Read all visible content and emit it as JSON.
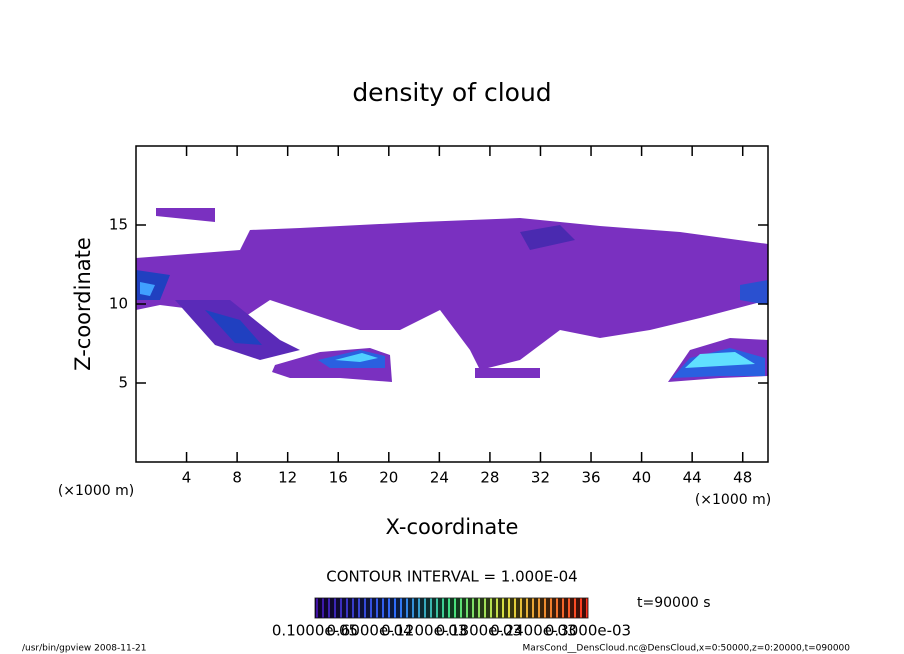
{
  "chart_data": {
    "type": "contour",
    "title": "density of cloud",
    "xlabel": "X-coordinate",
    "ylabel": "Z-coordinate",
    "x_unit": "(×1000 m)",
    "y_unit": "(×1000 m)",
    "xlim": [
      0,
      50
    ],
    "ylim": [
      0,
      20
    ],
    "xticks": [
      4,
      8,
      12,
      16,
      20,
      24,
      28,
      32,
      36,
      40,
      44,
      48
    ],
    "yticks": [
      5,
      10,
      15
    ],
    "contour_interval": "CONTOUR INTERVAL = 1.000E-04",
    "time_label": "t=90000 s",
    "colorbar_labels": [
      "0.1000e-05",
      "0.6000e-04",
      "0.1200e-03",
      "0.1800e-03",
      "0.2400e-03",
      "0.3000e-03"
    ],
    "footer_left": "/usr/bin/gpview   2008-11-21",
    "footer_right": "MarsCond__DensCloud.nc@DensCloud,x=0:50000,z=0:20000,t=090000"
  }
}
